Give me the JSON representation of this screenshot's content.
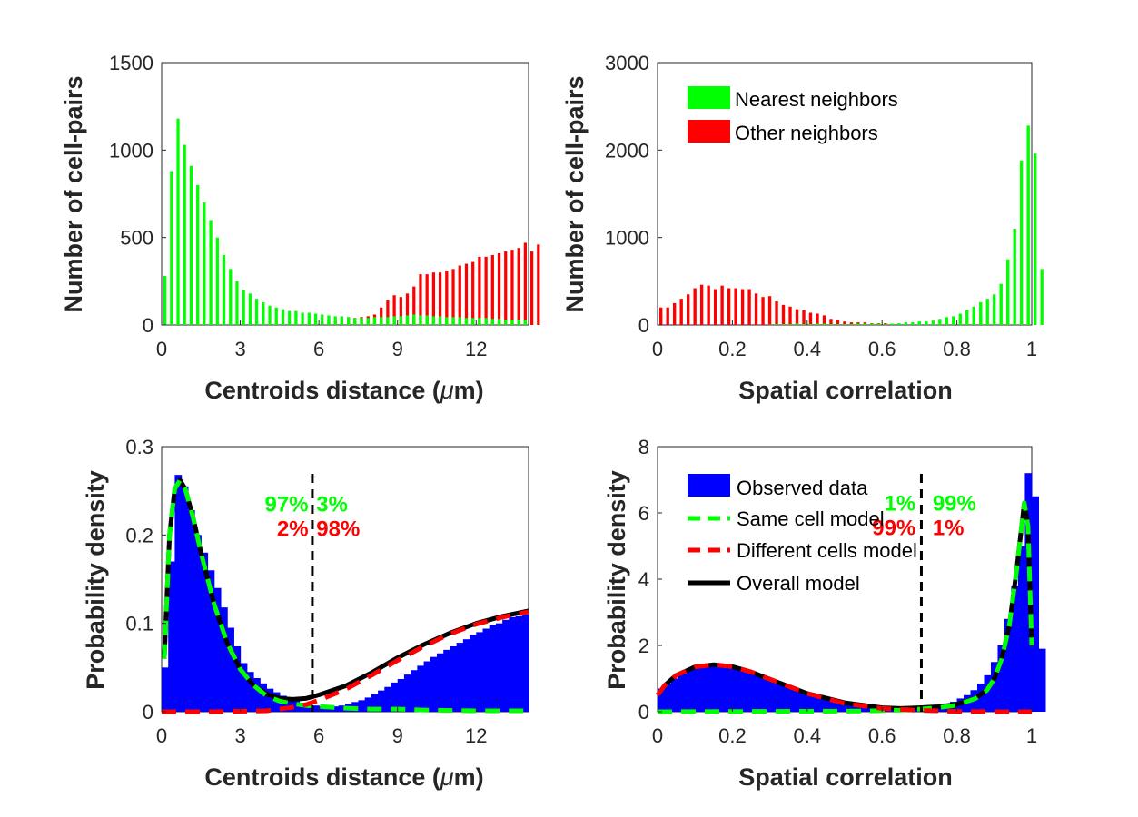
{
  "chart_data": [
    {
      "type": "bar",
      "panel": "top-left",
      "xlabel": "Centroids distance (",
      "xlabel_greek": "μ",
      "xlabel_unit": "m)",
      "ylabel": "Number of cell-pairs",
      "xlim": [
        0,
        14
      ],
      "ylim": [
        0,
        1500
      ],
      "xticks": [
        "0",
        "3",
        "6",
        "9",
        "12"
      ],
      "yticks": [
        "0",
        "500",
        "1000",
        "1500"
      ],
      "bin_width": 0.25,
      "legend": "none",
      "colors": {
        "nearest": "#00ff00",
        "other": "#ff0000"
      },
      "series": [
        {
          "name": "Nearest neighbors",
          "x_start": 0.125,
          "values": [
            280,
            880,
            1180,
            1030,
            910,
            800,
            700,
            600,
            500,
            400,
            320,
            250,
            200,
            180,
            150,
            130,
            110,
            100,
            90,
            80,
            80,
            70,
            70,
            65,
            60,
            55,
            50,
            50,
            45,
            40,
            40,
            40,
            45,
            45,
            45,
            50,
            50,
            55,
            60,
            55,
            55,
            50,
            50,
            45,
            45,
            45,
            40,
            40,
            40,
            40,
            35,
            35,
            30,
            30,
            30,
            30
          ]
        },
        {
          "name": "Other neighbors",
          "x_start": 5.875,
          "values": [
            10,
            15,
            25,
            30,
            35,
            45,
            40,
            45,
            50,
            60,
            100,
            140,
            170,
            160,
            180,
            220,
            290,
            290,
            300,
            300,
            310,
            320,
            340,
            350,
            360,
            390,
            390,
            400,
            410,
            420,
            430,
            440,
            470,
            420,
            460
          ]
        }
      ]
    },
    {
      "type": "bar",
      "panel": "top-right",
      "xlabel": "Spatial correlation",
      "ylabel": "Number of cell-pairs",
      "xlim": [
        0,
        1
      ],
      "ylim": [
        0,
        3000
      ],
      "xticks": [
        "0",
        "0.2",
        "0.4",
        "0.6",
        "0.8",
        "1"
      ],
      "yticks": [
        "0",
        "1000",
        "2000",
        "3000"
      ],
      "bin_width": 0.01818,
      "legend": "top-left",
      "colors": {
        "nearest": "#00ff00",
        "other": "#ff0000"
      },
      "series": [
        {
          "name": "Nearest neighbors",
          "x_start": 0.009,
          "values": [
            0,
            0,
            0,
            0,
            0,
            0,
            0,
            0,
            0,
            0,
            0,
            0,
            0,
            0,
            0,
            0,
            5,
            10,
            10,
            10,
            15,
            10,
            10,
            15,
            15,
            10,
            10,
            10,
            10,
            15,
            15,
            15,
            15,
            10,
            15,
            20,
            30,
            30,
            40,
            40,
            50,
            70,
            90,
            100,
            130,
            170,
            210,
            260,
            300,
            350,
            470,
            750,
            1100,
            1880,
            2280,
            1960,
            640
          ]
        },
        {
          "name": "Other neighbors",
          "x_start": 0.009,
          "values": [
            200,
            200,
            250,
            300,
            350,
            420,
            460,
            450,
            410,
            450,
            420,
            420,
            410,
            410,
            360,
            320,
            330,
            270,
            230,
            210,
            180,
            170,
            140,
            130,
            110,
            70,
            60,
            40,
            30,
            30,
            30,
            20,
            20,
            20,
            10,
            10,
            10,
            10,
            5,
            5,
            5,
            5,
            5,
            5,
            5,
            5,
            5,
            5,
            0,
            0,
            0,
            0,
            0,
            0,
            0,
            0,
            0
          ]
        }
      ]
    },
    {
      "type": "bar",
      "panel": "bottom-left",
      "xlabel": "Centroids distance (",
      "xlabel_greek": "μ",
      "xlabel_unit": "m)",
      "ylabel": "Probability density",
      "xlim": [
        0,
        14
      ],
      "ylim": [
        0,
        0.3
      ],
      "xticks": [
        "0",
        "3",
        "6",
        "9",
        "12"
      ],
      "yticks": [
        "0",
        "0.1",
        "0.2",
        "0.3"
      ],
      "bin_width": 0.25,
      "legend": "none",
      "threshold_x": 5.75,
      "annotations": [
        {
          "text": "97%",
          "color": "#00ff00",
          "x": 5.6,
          "y": 0.236,
          "anchor": "end"
        },
        {
          "text": "3%",
          "color": "#00ff00",
          "x": 5.9,
          "y": 0.236,
          "anchor": "start"
        },
        {
          "text": "2%",
          "color": "#ff0000",
          "x": 5.6,
          "y": 0.208,
          "anchor": "end"
        },
        {
          "text": "98%",
          "color": "#ff0000",
          "x": 5.9,
          "y": 0.208,
          "anchor": "start"
        }
      ],
      "colors": {
        "observed": "#0000ff",
        "same": "#00ff00",
        "different": "#ff0000",
        "overall": "#000000"
      },
      "series": [
        {
          "name": "Observed data",
          "x_start": 0.125,
          "values": [
            0.05,
            0.17,
            0.268,
            0.255,
            0.228,
            0.2,
            0.18,
            0.16,
            0.14,
            0.118,
            0.095,
            0.074,
            0.055,
            0.045,
            0.038,
            0.032,
            0.026,
            0.022,
            0.018,
            0.015,
            0.012,
            0.01,
            0.008,
            0.007,
            0.006,
            0.006,
            0.006,
            0.007,
            0.009,
            0.011,
            0.013,
            0.016,
            0.02,
            0.024,
            0.028,
            0.033,
            0.037,
            0.042,
            0.047,
            0.052,
            0.057,
            0.062,
            0.066,
            0.07,
            0.074,
            0.078,
            0.082,
            0.087,
            0.09,
            0.094,
            0.098,
            0.1,
            0.104,
            0.107,
            0.108,
            0.11
          ]
        },
        {
          "name": "Same cell model",
          "x": [
            0.1,
            0.3,
            0.5,
            0.7,
            0.9,
            1.2,
            1.5,
            2.0,
            2.5,
            3.0,
            3.5,
            4.0,
            4.5,
            5.0,
            5.5,
            6.0,
            7.0,
            8.0,
            9.0,
            10.0,
            12.0,
            14.0
          ],
          "values": [
            0.06,
            0.2,
            0.252,
            0.262,
            0.252,
            0.22,
            0.18,
            0.122,
            0.078,
            0.048,
            0.03,
            0.018,
            0.012,
            0.009,
            0.007,
            0.006,
            0.004,
            0.003,
            0.003,
            0.002,
            0.001,
            0.001
          ]
        },
        {
          "name": "Different cells model",
          "x": [
            0,
            2,
            4,
            5,
            5.5,
            6,
            7,
            8,
            9,
            10,
            11,
            12,
            13,
            14
          ],
          "values": [
            0,
            0,
            0.001,
            0.005,
            0.008,
            0.013,
            0.025,
            0.041,
            0.058,
            0.074,
            0.088,
            0.099,
            0.107,
            0.113
          ]
        },
        {
          "name": "Overall model",
          "x": [
            0.1,
            0.3,
            0.5,
            0.7,
            0.9,
            1.2,
            1.5,
            2.0,
            2.5,
            3.0,
            3.5,
            4.0,
            4.5,
            5.0,
            5.5,
            6.0,
            7.0,
            8.0,
            9.0,
            10.0,
            11.0,
            12.0,
            13.0,
            14.0
          ],
          "values": [
            0.06,
            0.2,
            0.252,
            0.262,
            0.252,
            0.22,
            0.18,
            0.122,
            0.078,
            0.048,
            0.03,
            0.02,
            0.015,
            0.014,
            0.015,
            0.019,
            0.029,
            0.044,
            0.061,
            0.076,
            0.089,
            0.1,
            0.108,
            0.114
          ]
        }
      ]
    },
    {
      "type": "bar",
      "panel": "bottom-right",
      "xlabel": "Spatial correlation",
      "ylabel": "Probability density",
      "xlim": [
        0,
        1
      ],
      "ylim": [
        0,
        8
      ],
      "xticks": [
        "0",
        "0.2",
        "0.4",
        "0.6",
        "0.8",
        "1"
      ],
      "yticks": [
        "0",
        "2",
        "4",
        "6",
        "8"
      ],
      "bin_width": 0.01818,
      "legend": "top-left",
      "threshold_x": 0.705,
      "annotations": [
        {
          "text": "1%",
          "color": "#00ff00",
          "x": 0.69,
          "y": 6.32,
          "anchor": "end"
        },
        {
          "text": "99%",
          "color": "#00ff00",
          "x": 0.735,
          "y": 6.32,
          "anchor": "start"
        },
        {
          "text": "99%",
          "color": "#ff0000",
          "x": 0.69,
          "y": 5.57,
          "anchor": "end"
        },
        {
          "text": "1%",
          "color": "#ff0000",
          "x": 0.735,
          "y": 5.57,
          "anchor": "start"
        }
      ],
      "colors": {
        "observed": "#0000ff",
        "same": "#00ff00",
        "different": "#ff0000",
        "overall": "#000000"
      },
      "series": [
        {
          "name": "Observed data",
          "x_start": 0.009,
          "values": [
            0.7,
            0.85,
            1.0,
            1.15,
            1.25,
            1.35,
            1.4,
            1.42,
            1.4,
            1.4,
            1.38,
            1.33,
            1.28,
            1.22,
            1.15,
            1.07,
            1.0,
            0.92,
            0.84,
            0.76,
            0.68,
            0.6,
            0.53,
            0.47,
            0.41,
            0.35,
            0.3,
            0.26,
            0.22,
            0.19,
            0.16,
            0.14,
            0.12,
            0.11,
            0.1,
            0.1,
            0.1,
            0.11,
            0.12,
            0.14,
            0.17,
            0.2,
            0.25,
            0.3,
            0.4,
            0.5,
            0.65,
            0.85,
            1.1,
            1.5,
            2.0,
            2.8,
            3.8,
            5.0,
            7.2,
            6.5,
            1.9
          ]
        },
        {
          "name": "Same cell model",
          "x": [
            0,
            0.55,
            0.65,
            0.7,
            0.75,
            0.8,
            0.85,
            0.88,
            0.9,
            0.92,
            0.94,
            0.96,
            0.98,
            0.99,
            1.0
          ],
          "values": [
            0,
            0.02,
            0.05,
            0.08,
            0.12,
            0.2,
            0.4,
            0.65,
            1.0,
            1.6,
            2.6,
            4.3,
            6.3,
            5.6,
            2.0
          ]
        },
        {
          "name": "Different cells model",
          "x": [
            0,
            0.02,
            0.05,
            0.1,
            0.15,
            0.2,
            0.25,
            0.3,
            0.4,
            0.5,
            0.6,
            0.7,
            0.8,
            0.9,
            1.0
          ],
          "values": [
            0.5,
            0.8,
            1.1,
            1.35,
            1.42,
            1.36,
            1.2,
            0.98,
            0.55,
            0.25,
            0.1,
            0.04,
            0.01,
            0.0,
            0.0
          ]
        },
        {
          "name": "Overall model",
          "x": [
            0,
            0.02,
            0.05,
            0.1,
            0.15,
            0.2,
            0.25,
            0.3,
            0.4,
            0.5,
            0.6,
            0.65,
            0.7,
            0.75,
            0.8,
            0.85,
            0.88,
            0.9,
            0.92,
            0.94,
            0.96,
            0.98,
            0.99,
            1.0
          ],
          "values": [
            0.5,
            0.8,
            1.1,
            1.35,
            1.42,
            1.36,
            1.2,
            0.98,
            0.55,
            0.27,
            0.12,
            0.1,
            0.12,
            0.15,
            0.22,
            0.41,
            0.66,
            1.0,
            1.6,
            2.6,
            4.3,
            6.3,
            5.6,
            2.0
          ]
        }
      ]
    }
  ]
}
